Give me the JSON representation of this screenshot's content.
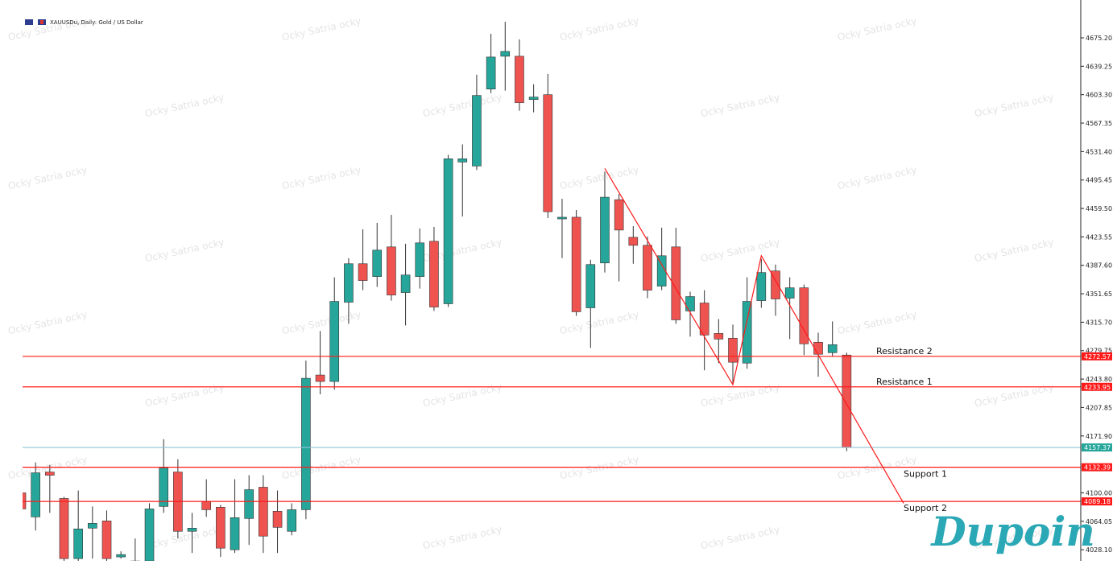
{
  "chart_data": {
    "type": "candlestick",
    "title": "XAUUSDu, Daily:  Gold / US Dollar",
    "watermark": "Ocky Satria ocky",
    "logo": "Dupoin",
    "up_color": "#26a69a",
    "down_color": "#ef5350",
    "open": [
      4100.0,
      4069.6,
      4126.3,
      4092.9,
      4016.9,
      4055.4,
      4064.5,
      4019.0,
      4013.9,
      4013.9,
      4082.8,
      4126.3,
      4051.4,
      4088.8,
      4081.8,
      4028.1,
      4067.6,
      4107.1,
      4076.7,
      4051.4,
      4078.7,
      4248.9,
      4240.8,
      4341.0,
      4389.6,
      4373.4,
      4410.9,
      4353.2,
      4373.4,
      4418.0,
      4339.0,
      4518.2,
      4513.2,
      4610.4,
      4651.9,
      4651.9,
      4597.2,
      4603.3,
      4446.3,
      4448.4,
      4333.9,
      4390.6,
      4470.6,
      4423.0,
      4412.9,
      4361.3,
      4410.9,
      4329.9,
      4340.0,
      4301.5,
      4295.4,
      4264.0,
      4343.0,
      4380.5,
      4346.1,
      4359.2,
      4290.4,
      4277.2,
      4274.2
    ],
    "high": [
      4103.0,
      4138.5,
      4135.4,
      4094.9,
      4103.0,
      4082.8,
      4077.7,
      4026.1,
      4042.3,
      4086.8,
      4167.8,
      4142.5,
      4074.7,
      4117.2,
      4084.8,
      4117.2,
      4122.3,
      4122.3,
      4103.0,
      4086.8,
      4267.1,
      4304.6,
      4372.4,
      4396.7,
      4433.2,
      4441.3,
      4451.4,
      4414.9,
      4434.2,
      4436.2,
      4527.3,
      4540.5,
      4628.6,
      4680.3,
      4695.5,
      4673.2,
      4616.5,
      4629.6,
      4471.7,
      4457.5,
      4394.7,
      4506.1,
      4477.7,
      4437.2,
      4424.1,
      4435.2,
      4435.2,
      4354.2,
      4356.2,
      4319.7,
      4312.7,
      4372.4,
      4395.7,
      4388.6,
      4372.4,
      4363.3,
      4302.5,
      4316.7,
      4277.2
    ],
    "low": [
      4074.7,
      4052.4,
      4074.7,
      4013.9,
      4013.9,
      4016.9,
      4013.9,
      4016.9,
      4003.8,
      4008.8,
      4074.7,
      4042.3,
      4024.0,
      4069.6,
      4019.0,
      4024.0,
      4034.2,
      4024.0,
      4024.0,
      4046.3,
      4066.6,
      4224.6,
      4230.6,
      4313.7,
      4356.2,
      4360.3,
      4343.0,
      4311.6,
      4358.2,
      4329.9,
      4334.9,
      4449.4,
      4508.1,
      4605.3,
      4608.4,
      4583.0,
      4581.0,
      4447.3,
      4396.7,
      4323.8,
      4283.3,
      4378.5,
      4367.3,
      4389.6,
      4346.1,
      4356.2,
      4313.7,
      4297.5,
      4254.9,
      4264.0,
      4238.7,
      4257.0,
      4333.9,
      4323.8,
      4294.4,
      4274.2,
      4246.8,
      4272.1,
      4152.7
    ],
    "close": [
      4079.7,
      4125.3,
      4122.3,
      4016.9,
      4054.4,
      4061.5,
      4016.9,
      4022.0,
      4008.8,
      4079.7,
      4131.4,
      4051.4,
      4055.4,
      4078.7,
      4030.1,
      4068.6,
      4104.0,
      4045.3,
      4056.4,
      4078.7,
      4244.8,
      4240.8,
      4342.0,
      4389.6,
      4368.4,
      4406.8,
      4350.1,
      4375.4,
      4416.0,
      4334.9,
      4522.3,
      4522.3,
      4602.3,
      4650.9,
      4658.0,
      4593.2,
      4600.3,
      4455.4,
      4448.4,
      4328.9,
      4388.6,
      4473.7,
      4432.2,
      4412.9,
      4356.2,
      4399.7,
      4318.7,
      4348.1,
      4299.5,
      4294.4,
      4265.1,
      4342.0,
      4378.5,
      4345.1,
      4359.2,
      4288.4,
      4275.2,
      4287.3,
      4157.4
    ],
    "ylim": [
      4014,
      4723
    ],
    "yticks": [
      {
        "value": 4675.2,
        "label": "4675.20"
      },
      4639.25,
      {
        "value": 4603.3,
        "label": "4603.30"
      },
      4567.35,
      {
        "value": 4531.4,
        "label": "4531.40"
      },
      4495.45,
      {
        "value": 4459.5,
        "label": "4459.50"
      },
      4423.55,
      {
        "value": 4387.6,
        "label": "4387.60"
      },
      4351.65,
      {
        "value": 4315.7,
        "label": "4315.70"
      },
      4279.75,
      {
        "value": 4243.8,
        "label": "4243.80"
      },
      4207.85,
      {
        "value": 4171.9,
        "label": "4171.90"
      },
      {
        "value": 4100,
        "label": "4100.00"
      },
      4064.05,
      {
        "value": 4028.1,
        "label": "4028.10"
      }
    ],
    "levels": [
      {
        "name": "Resistance 2",
        "value": 4272.57,
        "color": "#ff1a1a"
      },
      {
        "name": "Resistance 1",
        "value": 4233.95,
        "color": "#ff1a1a"
      },
      {
        "value": 4157.37,
        "color": "#8ec5d6"
      },
      {
        "name": "Support 1",
        "value": 4132.39,
        "color": "#ff1a1a"
      },
      {
        "name": "Support 2",
        "value": 4089.18,
        "color": "#ff1a1a"
      }
    ],
    "zigzag": {
      "color": "#ff1a1a",
      "x": [
        41,
        50,
        52,
        62
      ],
      "y": [
        4510.1,
        4236.7,
        4399.7,
        4086.8
      ]
    }
  }
}
